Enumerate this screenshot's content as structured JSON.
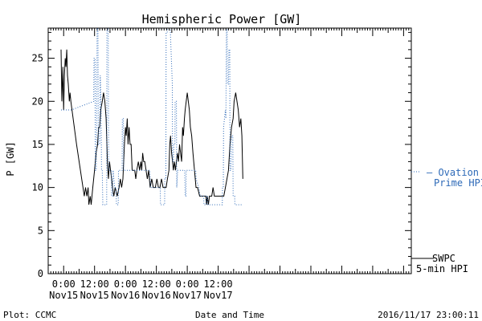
{
  "chart_data": {
    "type": "line",
    "title": "Hemispheric Power [GW]",
    "xlabel": "Date and Time",
    "ylabel": "P [GW]",
    "ylim": [
      0,
      28.5
    ],
    "xlim": [
      -6,
      135
    ],
    "x_unit": "hours since 2016/11/15 00:00",
    "yticks": [
      0,
      5,
      10,
      15,
      20,
      25
    ],
    "xticks": [
      {
        "x": 0,
        "time": "0:00",
        "date": "Nov15"
      },
      {
        "x": 12,
        "time": "12:00",
        "date": "Nov15"
      },
      {
        "x": 24,
        "time": "0:00",
        "date": "Nov16"
      },
      {
        "x": 36,
        "time": "12:00",
        "date": "Nov16"
      },
      {
        "x": 48,
        "time": "0:00",
        "date": "Nov17"
      },
      {
        "x": 60,
        "time": "12:00",
        "date": "Nov17"
      }
    ],
    "grid": false,
    "series": [
      {
        "name": "SWPC 5-min HPI",
        "color": "#000000",
        "style": "solid",
        "points": [
          [
            -1,
            26
          ],
          [
            -0.7,
            20
          ],
          [
            -0.3,
            24
          ],
          [
            0,
            19
          ],
          [
            0.3,
            23
          ],
          [
            0.6,
            25
          ],
          [
            0.9,
            24
          ],
          [
            1.2,
            26
          ],
          [
            1.5,
            23
          ],
          [
            1.8,
            22
          ],
          [
            2.2,
            20
          ],
          [
            2.5,
            21
          ],
          [
            2.8,
            20
          ],
          [
            5,
            15
          ],
          [
            7,
            11
          ],
          [
            7.5,
            10
          ],
          [
            8,
            9
          ],
          [
            8.5,
            10
          ],
          [
            9,
            9
          ],
          [
            9.5,
            10
          ],
          [
            9.8,
            8
          ],
          [
            10.3,
            9
          ],
          [
            10.7,
            8
          ],
          [
            11.3,
            10
          ],
          [
            12,
            12
          ],
          [
            12.6,
            14
          ],
          [
            13.2,
            15
          ],
          [
            13.6,
            17
          ],
          [
            14,
            17
          ],
          [
            14.4,
            19
          ],
          [
            15,
            20
          ],
          [
            15.5,
            21
          ],
          [
            16,
            20
          ],
          [
            16.5,
            18
          ],
          [
            17,
            13
          ],
          [
            17.4,
            11
          ],
          [
            17.8,
            13
          ],
          [
            18.2,
            12
          ],
          [
            18.6,
            11
          ],
          [
            19,
            10
          ],
          [
            19.5,
            9
          ],
          [
            20,
            10
          ],
          [
            20.8,
            9
          ],
          [
            21.5,
            10
          ],
          [
            22,
            11
          ],
          [
            22.5,
            10
          ],
          [
            23,
            11
          ],
          [
            23.6,
            15
          ],
          [
            24,
            17
          ],
          [
            24.3,
            16
          ],
          [
            24.7,
            18
          ],
          [
            25,
            15
          ],
          [
            25.4,
            17
          ],
          [
            25.8,
            15
          ],
          [
            26.2,
            15
          ],
          [
            26.6,
            12
          ],
          [
            27,
            12
          ],
          [
            27.6,
            12
          ],
          [
            28,
            11
          ],
          [
            28.4,
            12
          ],
          [
            29,
            13
          ],
          [
            29.5,
            12
          ],
          [
            30,
            13
          ],
          [
            30.3,
            12
          ],
          [
            30.7,
            14
          ],
          [
            31.1,
            13
          ],
          [
            31.5,
            13
          ],
          [
            32,
            12
          ],
          [
            32.5,
            11
          ],
          [
            33,
            12
          ],
          [
            33.6,
            10
          ],
          [
            34.2,
            11
          ],
          [
            34.8,
            10
          ],
          [
            35.6,
            10
          ],
          [
            36.2,
            11
          ],
          [
            36.8,
            10
          ],
          [
            37.4,
            10
          ],
          [
            38,
            11
          ],
          [
            38.6,
            10
          ],
          [
            39.2,
            10
          ],
          [
            39.8,
            10
          ],
          [
            40.3,
            11
          ],
          [
            40.9,
            12
          ],
          [
            41.2,
            15
          ],
          [
            41.5,
            16
          ],
          [
            41.9,
            14
          ],
          [
            42.3,
            13
          ],
          [
            42.6,
            12
          ],
          [
            43,
            13
          ],
          [
            43.4,
            12
          ],
          [
            43.8,
            13
          ],
          [
            44.2,
            14
          ],
          [
            44.6,
            13
          ],
          [
            45,
            15
          ],
          [
            45.4,
            14
          ],
          [
            45.8,
            13
          ],
          [
            46.2,
            17
          ],
          [
            46.5,
            16
          ],
          [
            46.9,
            18
          ],
          [
            47.2,
            19
          ],
          [
            47.6,
            20
          ],
          [
            48,
            21
          ],
          [
            48.4,
            20
          ],
          [
            48.8,
            19
          ],
          [
            49.2,
            17
          ],
          [
            49.7,
            16
          ],
          [
            50.2,
            14
          ],
          [
            50.8,
            12
          ],
          [
            51.4,
            10
          ],
          [
            52,
            10
          ],
          [
            52.8,
            9
          ],
          [
            53.6,
            9
          ],
          [
            54.4,
            9
          ],
          [
            55.2,
            9
          ],
          [
            55.5,
            8
          ],
          [
            55.8,
            9
          ],
          [
            56.2,
            8
          ],
          [
            56.6,
            9
          ],
          [
            57,
            9
          ],
          [
            57.5,
            9
          ],
          [
            58,
            10
          ],
          [
            58.5,
            9
          ],
          [
            59,
            9
          ],
          [
            59.6,
            9
          ],
          [
            60.4,
            9
          ],
          [
            61,
            9
          ],
          [
            61.6,
            9
          ],
          [
            62.2,
            9
          ],
          [
            62.8,
            10
          ],
          [
            63.4,
            11
          ],
          [
            64,
            12
          ],
          [
            64.6,
            15
          ],
          [
            65.2,
            17
          ],
          [
            65.8,
            18
          ],
          [
            66.2,
            20
          ],
          [
            66.8,
            21
          ],
          [
            67.3,
            20
          ],
          [
            67.8,
            19
          ],
          [
            68.3,
            17
          ],
          [
            68.8,
            18
          ],
          [
            69.2,
            16
          ],
          [
            69.6,
            11
          ]
        ]
      },
      {
        "name": "Ovation Prime HPI",
        "color": "#2e6ab8",
        "style": "dotted",
        "points": [
          [
            -1,
            19
          ],
          [
            3,
            19
          ],
          [
            11.7,
            20
          ],
          [
            11.8,
            25
          ],
          [
            12.2,
            25
          ],
          [
            12.3,
            12
          ],
          [
            12.7,
            12
          ],
          [
            12.8,
            16
          ],
          [
            13,
            28.5
          ],
          [
            13.3,
            28.5
          ],
          [
            13.5,
            15
          ],
          [
            14,
            15
          ],
          [
            14.2,
            23
          ],
          [
            14.5,
            20
          ],
          [
            14.7,
            12
          ],
          [
            15,
            12
          ],
          [
            15.2,
            8
          ],
          [
            16.7,
            8
          ],
          [
            16.8,
            28.5
          ],
          [
            17.3,
            28.5
          ],
          [
            17.5,
            12
          ],
          [
            18.5,
            12
          ],
          [
            18.6,
            9
          ],
          [
            19,
            9
          ],
          [
            19.2,
            12
          ],
          [
            19.8,
            10
          ],
          [
            20.3,
            10
          ],
          [
            20.5,
            8
          ],
          [
            21.2,
            8
          ],
          [
            21.3,
            12
          ],
          [
            22.7,
            12
          ],
          [
            22.8,
            18
          ],
          [
            23.2,
            18
          ],
          [
            23.3,
            12
          ],
          [
            28.5,
            12
          ],
          [
            33.5,
            12
          ],
          [
            33.7,
            10
          ],
          [
            37.5,
            10
          ],
          [
            37.6,
            8
          ],
          [
            39.2,
            8
          ],
          [
            39.3,
            11
          ],
          [
            39.7,
            11
          ],
          [
            39.8,
            28
          ],
          [
            40.2,
            28
          ],
          [
            40.3,
            29
          ],
          [
            41.2,
            29
          ],
          [
            41.4,
            28.5
          ],
          [
            42.2,
            22
          ],
          [
            42.3,
            13
          ],
          [
            42.6,
            13
          ],
          [
            42.8,
            15
          ],
          [
            43.2,
            15
          ],
          [
            43.3,
            20
          ],
          [
            43.8,
            20
          ],
          [
            43.9,
            10
          ],
          [
            44.3,
            12
          ],
          [
            47,
            12
          ],
          [
            47.2,
            9
          ],
          [
            47.5,
            9
          ],
          [
            47.6,
            12
          ],
          [
            51.3,
            12
          ],
          [
            51.4,
            11
          ],
          [
            52.5,
            10
          ],
          [
            53,
            9
          ],
          [
            54.4,
            9
          ],
          [
            54.5,
            8
          ],
          [
            55.3,
            8
          ],
          [
            55.4,
            9
          ],
          [
            55.9,
            9
          ],
          [
            56,
            8
          ],
          [
            61.6,
            8
          ],
          [
            61.7,
            10
          ],
          [
            62,
            10
          ],
          [
            62.1,
            17
          ],
          [
            62.8,
            19
          ],
          [
            63,
            18
          ],
          [
            63.2,
            28.5
          ],
          [
            63.5,
            28.5
          ],
          [
            63.6,
            22
          ],
          [
            64,
            22
          ],
          [
            64.2,
            26
          ],
          [
            64.5,
            26
          ],
          [
            64.6,
            12
          ],
          [
            65,
            12
          ],
          [
            65.2,
            16
          ],
          [
            65.7,
            16
          ],
          [
            65.8,
            9
          ],
          [
            66.4,
            9
          ],
          [
            66.5,
            8
          ],
          [
            69.2,
            8
          ]
        ]
      }
    ],
    "legend": [
      {
        "label_lines": [
          "SWPC",
          "5-min HPI"
        ],
        "color": "#000000",
        "position": "right-bottom"
      },
      {
        "label_lines": [
          "– Ovation",
          "Prime HPI"
        ],
        "color": "#2e6ab8",
        "position": "right-middle"
      }
    ]
  },
  "footer": {
    "left": "Plot: CCMC",
    "center": "Date and Time",
    "right": "2016/11/17 23:00:11"
  }
}
